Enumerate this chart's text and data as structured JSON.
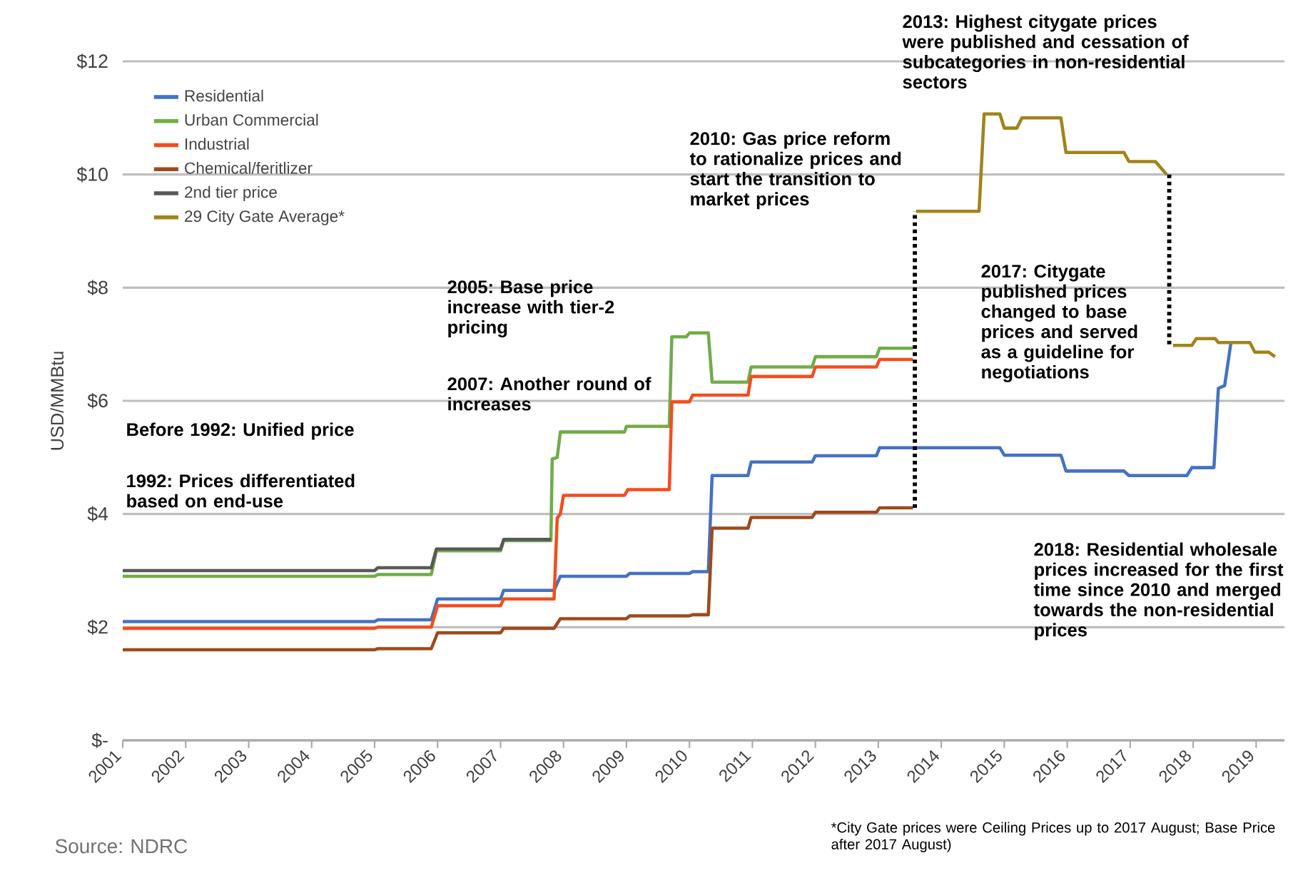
{
  "chart_data": {
    "type": "line",
    "ylabel": "USD/MMBtu",
    "xlim": [
      2001,
      2019.45
    ],
    "ylim": [
      0,
      12
    ],
    "xticks": [
      2001,
      2002,
      2003,
      2004,
      2005,
      2006,
      2007,
      2008,
      2009,
      2010,
      2011,
      2012,
      2013,
      2014,
      2015,
      2016,
      2017,
      2018,
      2019
    ],
    "yticks": [
      {
        "value": 0,
        "label": "$-"
      },
      {
        "value": 2,
        "label": "$2"
      },
      {
        "value": 4,
        "label": "$4"
      },
      {
        "value": 6,
        "label": "$6"
      },
      {
        "value": 8,
        "label": "$8"
      },
      {
        "value": 10,
        "label": "$10"
      },
      {
        "value": 12,
        "label": "$12"
      }
    ],
    "grid": "y",
    "legend": "top left",
    "marker": "none",
    "line_style": "solid",
    "series": [
      {
        "name": "Residential",
        "color": "#4472c4",
        "x": [
          2001,
          2005,
          2005.05,
          2005.9,
          2006,
          2007,
          2007.05,
          2007.85,
          2007.95,
          2009,
          2009.05,
          2010,
          2010.05,
          2010.3,
          2010.36,
          2010.93,
          2010.98,
          2011.95,
          2012,
          2012.97,
          2013.02,
          2014.93,
          2015,
          2015.9,
          2015.98,
          2016.9,
          2016.98,
          2017.9,
          2017.98,
          2018.33,
          2018.4,
          2018.5,
          2018.6
        ],
        "values": [
          2.1,
          2.1,
          2.13,
          2.13,
          2.5,
          2.5,
          2.65,
          2.65,
          2.9,
          2.9,
          2.95,
          2.95,
          2.98,
          2.98,
          4.68,
          4.68,
          4.92,
          4.92,
          5.03,
          5.03,
          5.17,
          5.17,
          5.04,
          5.04,
          4.76,
          4.76,
          4.68,
          4.68,
          4.82,
          4.82,
          6.22,
          6.27,
          7.03
        ]
      },
      {
        "name": "Urban Commercial",
        "color": "#70ad47",
        "x": [
          2001,
          2005,
          2005.05,
          2005.9,
          2005.98,
          2007,
          2007.05,
          2007.8,
          2007.82,
          2007.9,
          2007.95,
          2008.97,
          2009,
          2009.68,
          2009.72,
          2009.95,
          2010,
          2010.3,
          2010.36,
          2010.93,
          2010.98,
          2011.95,
          2012,
          2012.97,
          2013.02,
          2013.55
        ],
        "values": [
          2.9,
          2.9,
          2.93,
          2.93,
          3.35,
          3.35,
          3.53,
          3.53,
          4.97,
          5.0,
          5.45,
          5.45,
          5.55,
          5.55,
          7.13,
          7.13,
          7.2,
          7.2,
          6.33,
          6.33,
          6.6,
          6.6,
          6.78,
          6.78,
          6.93,
          6.93
        ]
      },
      {
        "name": "Industrial",
        "color": "#f24e1e",
        "x": [
          2001,
          2005,
          2005.05,
          2005.9,
          2006,
          2007,
          2007.05,
          2007.85,
          2007.9,
          2007.95,
          2008,
          2008.97,
          2009.02,
          2009.68,
          2009.72,
          2010,
          2010.05,
          2010.93,
          2010.98,
          2011.95,
          2012,
          2012.97,
          2013.02,
          2013.55
        ],
        "values": [
          1.98,
          1.98,
          2.0,
          2.0,
          2.38,
          2.38,
          2.5,
          2.5,
          3.93,
          4.0,
          4.33,
          4.33,
          4.43,
          4.43,
          5.98,
          5.98,
          6.1,
          6.1,
          6.43,
          6.43,
          6.6,
          6.6,
          6.73,
          6.73
        ]
      },
      {
        "name": "Chemical/feritlizer",
        "color": "#9e4a1c",
        "x": [
          2001,
          2005,
          2005.05,
          2005.9,
          2006,
          2007,
          2007.05,
          2007.85,
          2007.95,
          2009,
          2009.05,
          2010,
          2010.05,
          2010.3,
          2010.36,
          2010.93,
          2010.98,
          2011.95,
          2012,
          2012.97,
          2013.02,
          2013.55
        ],
        "values": [
          1.6,
          1.6,
          1.62,
          1.62,
          1.9,
          1.9,
          1.98,
          1.98,
          2.15,
          2.15,
          2.2,
          2.2,
          2.22,
          2.22,
          3.75,
          3.75,
          3.94,
          3.94,
          4.03,
          4.03,
          4.11,
          4.11
        ]
      },
      {
        "name": "2nd tier price",
        "color": "#595959",
        "x": [
          2001,
          2005,
          2005.05,
          2005.9,
          2005.98,
          2007,
          2007.05,
          2007.8
        ],
        "values": [
          3.0,
          3.0,
          3.05,
          3.05,
          3.38,
          3.38,
          3.55,
          3.55
        ]
      },
      {
        "name": "29 City Gate Average*",
        "color": "#a0841c",
        "x": [
          2013.6,
          2014.6,
          2014.68,
          2014.93,
          2015,
          2015.2,
          2015.28,
          2015.9,
          2015.98,
          2016.9,
          2016.98,
          2017.4,
          2017.58,
          2017.63,
          2017.68,
          2017.98,
          2018.05,
          2018.35,
          2018.4,
          2018.9,
          2018.98,
          2019.2,
          2019.3
        ],
        "values": [
          9.35,
          9.35,
          11.07,
          11.07,
          10.82,
          10.82,
          11.0,
          11.0,
          10.39,
          10.39,
          10.23,
          10.23,
          10.0,
          null,
          6.98,
          6.98,
          7.1,
          7.1,
          7.03,
          7.03,
          6.86,
          6.86,
          6.78
        ]
      },
      {
        "color": "#000000",
        "line_style": "dotted",
        "x": [
          2013.58,
          2013.58,
          2015.6,
          2017.62,
          2017.62
        ],
        "values": [
          4.11,
          9.35,
          null,
          10.0,
          6.98
        ]
      }
    ],
    "annotations": [
      "2013: Highest citygate prices were published and cessation of subcategories in non-residential sectors",
      "2010: Gas price reform to rationalize prices and start the transition to market prices",
      "2005: Base price increase with tier-2 pricing",
      "2007: Another round of increases",
      "Before 1992: Unified price",
      "1992: Prices differentiated based on end-use",
      "2017: Citygate published prices changed to base prices and served as a guideline for negotiations",
      "2018: Residential wholesale prices increased for the first time since 2010 and merged towards the non-residential prices",
      "*City Gate prices were Ceiling Prices up to 2017 August; Base Price after 2017 August)",
      "Source: NDRC"
    ]
  }
}
